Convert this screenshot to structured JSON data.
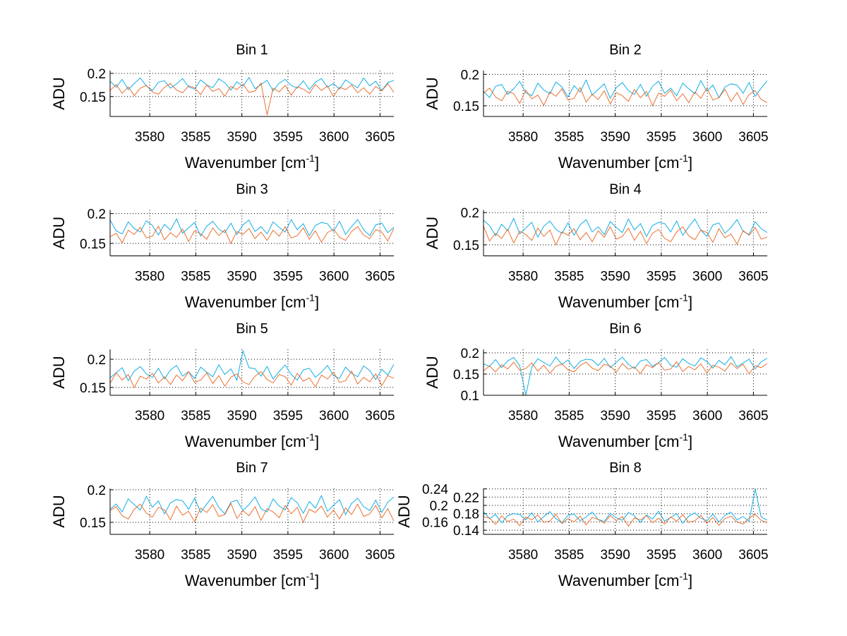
{
  "chart_data": [
    {
      "type": "line",
      "title": "Bin 1",
      "ylabel": "ADU",
      "xlim": [
        3575.7,
        3606.5
      ],
      "ylim": [
        0.107,
        0.206
      ],
      "yticks": [
        "0.15",
        "0.2"
      ],
      "ytick_values": [
        0.15,
        0.2
      ],
      "series": [
        {
          "name": "series-blue",
          "values": [
            183,
            170,
            187,
            165,
            178,
            190,
            173,
            163,
            181,
            184,
            168,
            177,
            189,
            171,
            166,
            186,
            175,
            169,
            188,
            180,
            164,
            182,
            172,
            191,
            167,
            176,
            185,
            162,
            179,
            187,
            174,
            168,
            184,
            165,
            181,
            189,
            170,
            178,
            166,
            186,
            177,
            169,
            190,
            173,
            183,
            163,
            180,
            185
          ]
        },
        {
          "name": "series-orange",
          "values": [
            163,
            176,
            157,
            171,
            152,
            168,
            174,
            160,
            155,
            170,
            178,
            164,
            158,
            173,
            169,
            154,
            175,
            161,
            167,
            151,
            172,
            165,
            177,
            159,
            162,
            179,
            110,
            168,
            160,
            174,
            153,
            171,
            166,
            157,
            176,
            163,
            173,
            150,
            170,
            165,
            175,
            158,
            169,
            155,
            172,
            162,
            178,
            159
          ]
        }
      ]
    },
    {
      "type": "line",
      "title": "Bin 2",
      "ylabel": "ADU",
      "xlim": [
        3575.7,
        3606.5
      ],
      "ylim": [
        0.133,
        0.206
      ],
      "yticks": [
        "0.15",
        "0.2"
      ],
      "ytick_values": [
        0.15,
        0.2
      ],
      "series": [
        {
          "name": "series-blue",
          "values": [
            173,
            163,
            181,
            184,
            168,
            177,
            189,
            171,
            166,
            186,
            175,
            169,
            188,
            180,
            164,
            182,
            172,
            191,
            167,
            176,
            185,
            162,
            179,
            187,
            174,
            168,
            184,
            165,
            181,
            189,
            170,
            178,
            166,
            186,
            177,
            169,
            190,
            173,
            183,
            163,
            180,
            185,
            183,
            170,
            187,
            165,
            178,
            190
          ]
        },
        {
          "name": "series-orange",
          "values": [
            170,
            178,
            164,
            158,
            173,
            169,
            154,
            175,
            161,
            167,
            151,
            172,
            165,
            177,
            159,
            162,
            179,
            156,
            168,
            160,
            174,
            153,
            171,
            166,
            157,
            176,
            163,
            173,
            150,
            170,
            165,
            175,
            158,
            169,
            155,
            172,
            162,
            178,
            159,
            163,
            176,
            157,
            171,
            152,
            168,
            174,
            160,
            155
          ]
        }
      ]
    },
    {
      "type": "line",
      "title": "Bin 3",
      "ylabel": "ADU",
      "xlim": [
        3575.7,
        3606.5
      ],
      "ylim": [
        0.129,
        0.206
      ],
      "yticks": [
        "0.15",
        "0.2"
      ],
      "ytick_values": [
        0.15,
        0.2
      ],
      "series": [
        {
          "name": "series-blue",
          "values": [
            189,
            171,
            166,
            186,
            175,
            169,
            188,
            180,
            164,
            182,
            172,
            191,
            167,
            176,
            185,
            162,
            179,
            187,
            174,
            168,
            184,
            165,
            181,
            189,
            170,
            178,
            166,
            186,
            177,
            169,
            190,
            173,
            183,
            163,
            180,
            185,
            183,
            170,
            187,
            165,
            178,
            190,
            173,
            163,
            181,
            184,
            168,
            177
          ]
        },
        {
          "name": "series-orange",
          "values": [
            161,
            167,
            151,
            172,
            165,
            177,
            159,
            162,
            179,
            156,
            168,
            160,
            174,
            153,
            171,
            166,
            157,
            176,
            163,
            173,
            150,
            170,
            165,
            175,
            158,
            169,
            155,
            172,
            162,
            178,
            159,
            163,
            176,
            157,
            171,
            152,
            168,
            174,
            160,
            155,
            170,
            178,
            164,
            158,
            173,
            169,
            154,
            175
          ]
        }
      ]
    },
    {
      "type": "line",
      "title": "Bin 4",
      "ylabel": "ADU",
      "xlim": [
        3575.7,
        3606.5
      ],
      "ylim": [
        0.133,
        0.204
      ],
      "yticks": [
        "0.15",
        "0.2"
      ],
      "ytick_values": [
        0.15,
        0.2
      ],
      "series": [
        {
          "name": "series-blue",
          "values": [
            188,
            180,
            164,
            182,
            172,
            191,
            167,
            176,
            185,
            162,
            179,
            187,
            174,
            168,
            184,
            165,
            181,
            189,
            170,
            178,
            166,
            186,
            177,
            169,
            190,
            173,
            183,
            163,
            180,
            185,
            183,
            170,
            187,
            165,
            178,
            190,
            173,
            163,
            181,
            184,
            168,
            177,
            189,
            171,
            166,
            186,
            175,
            169
          ]
        },
        {
          "name": "series-orange",
          "values": [
            179,
            156,
            168,
            160,
            174,
            153,
            171,
            166,
            157,
            176,
            163,
            173,
            150,
            170,
            165,
            175,
            158,
            169,
            155,
            172,
            162,
            178,
            159,
            163,
            176,
            157,
            171,
            152,
            168,
            174,
            160,
            155,
            170,
            178,
            164,
            158,
            173,
            169,
            154,
            175,
            161,
            167,
            151,
            172,
            165,
            177,
            159,
            162
          ]
        }
      ]
    },
    {
      "type": "line",
      "title": "Bin 5",
      "ylabel": "ADU",
      "xlim": [
        3575.7,
        3606.5
      ],
      "ylim": [
        0.136,
        0.2175
      ],
      "yticks": [
        "0.15",
        "0.2"
      ],
      "ytick_values": [
        0.15,
        0.2
      ],
      "series": [
        {
          "name": "series-blue",
          "values": [
            167,
            176,
            185,
            162,
            179,
            187,
            174,
            168,
            184,
            165,
            181,
            189,
            170,
            178,
            166,
            186,
            177,
            169,
            190,
            173,
            183,
            163,
            215,
            185,
            183,
            170,
            187,
            165,
            178,
            190,
            173,
            163,
            181,
            184,
            168,
            177,
            189,
            171,
            166,
            186,
            175,
            169,
            188,
            180,
            164,
            182,
            172,
            191
          ]
        },
        {
          "name": "series-orange",
          "values": [
            157,
            176,
            163,
            173,
            150,
            170,
            165,
            175,
            158,
            169,
            155,
            172,
            162,
            178,
            159,
            163,
            176,
            157,
            171,
            152,
            168,
            174,
            160,
            155,
            170,
            178,
            164,
            158,
            173,
            169,
            154,
            175,
            161,
            167,
            151,
            172,
            165,
            177,
            159,
            162,
            179,
            156,
            168,
            160,
            174,
            153,
            171,
            166
          ]
        }
      ]
    },
    {
      "type": "line",
      "title": "Bin 6",
      "ylabel": "ADU",
      "xlim": [
        3575.7,
        3606.5
      ],
      "ylim": [
        0.1,
        0.208
      ],
      "yticks": [
        "0.1",
        "0.15",
        "0.2"
      ],
      "ytick_values": [
        0.1,
        0.15,
        0.2
      ],
      "series": [
        {
          "name": "series-blue",
          "values": [
            174,
            168,
            184,
            165,
            181,
            189,
            170,
            100,
            166,
            186,
            177,
            169,
            190,
            173,
            183,
            163,
            180,
            185,
            183,
            170,
            187,
            165,
            178,
            190,
            173,
            163,
            181,
            184,
            168,
            177,
            189,
            171,
            166,
            186,
            175,
            169,
            188,
            180,
            164,
            182,
            172,
            191,
            167,
            176,
            185,
            162,
            179,
            187
          ]
        },
        {
          "name": "series-orange",
          "values": [
            158,
            169,
            155,
            172,
            162,
            178,
            159,
            163,
            176,
            157,
            171,
            152,
            168,
            174,
            160,
            155,
            170,
            178,
            164,
            158,
            173,
            169,
            154,
            175,
            161,
            167,
            151,
            172,
            165,
            177,
            159,
            162,
            179,
            156,
            168,
            160,
            174,
            153,
            171,
            166,
            157,
            176,
            163,
            173,
            150,
            170,
            165,
            175
          ]
        }
      ]
    },
    {
      "type": "line",
      "title": "Bin 7",
      "ylabel": "ADU",
      "xlim": [
        3575.7,
        3606.5
      ],
      "ylim": [
        0.1315,
        0.202
      ],
      "yticks": [
        "0.15",
        "0.2"
      ],
      "ytick_values": [
        0.15,
        0.2
      ],
      "series": [
        {
          "name": "series-blue",
          "values": [
            170,
            178,
            166,
            186,
            177,
            169,
            190,
            173,
            183,
            163,
            180,
            185,
            183,
            170,
            187,
            165,
            178,
            190,
            173,
            163,
            181,
            184,
            168,
            177,
            189,
            171,
            166,
            186,
            175,
            169,
            188,
            180,
            164,
            182,
            172,
            191,
            167,
            176,
            185,
            162,
            179,
            187,
            174,
            168,
            184,
            165,
            181,
            189
          ]
        },
        {
          "name": "series-orange",
          "values": [
            168,
            174,
            160,
            155,
            170,
            178,
            164,
            158,
            173,
            169,
            154,
            175,
            161,
            167,
            151,
            172,
            165,
            177,
            159,
            162,
            179,
            156,
            168,
            160,
            174,
            153,
            171,
            166,
            157,
            176,
            163,
            173,
            150,
            170,
            165,
            175,
            158,
            169,
            155,
            172,
            162,
            178,
            159,
            163,
            176,
            157,
            171,
            152
          ]
        }
      ]
    },
    {
      "type": "line",
      "title": "Bin 8",
      "ylabel": "ADU",
      "xlim": [
        3575.7,
        3606.5
      ],
      "ylim": [
        0.13,
        0.241
      ],
      "yticks": [
        "0.14",
        "0.16",
        "0.18",
        "0.2",
        "0.22",
        "0.24"
      ],
      "ytick_values": [
        0.14,
        0.16,
        0.18,
        0.2,
        0.22,
        0.24
      ],
      "series": [
        {
          "name": "series-blue",
          "values": [
            185,
            168,
            178,
            158,
            175,
            180,
            178,
            165,
            182,
            160,
            173,
            185,
            168,
            158,
            176,
            179,
            163,
            172,
            184,
            166,
            161,
            181,
            170,
            164,
            183,
            175,
            159,
            177,
            167,
            186,
            162,
            171,
            180,
            157,
            174,
            182,
            169,
            163,
            179,
            160,
            176,
            184,
            165,
            173,
            161,
            240,
            172,
            164
          ]
        },
        {
          "name": "series-orange",
          "values": [
            173,
            169,
            154,
            175,
            161,
            167,
            151,
            172,
            165,
            177,
            159,
            162,
            179,
            156,
            168,
            160,
            174,
            153,
            171,
            166,
            157,
            176,
            163,
            173,
            150,
            170,
            165,
            175,
            158,
            169,
            155,
            172,
            162,
            178,
            159,
            163,
            176,
            157,
            171,
            152,
            168,
            174,
            160,
            155,
            170,
            178,
            164,
            158
          ]
        }
      ]
    }
  ],
  "shared": {
    "value_scale": 0.001,
    "xticks": [
      "3580",
      "3585",
      "3590",
      "3595",
      "3600",
      "3605"
    ],
    "xtick_values": [
      3580,
      3585,
      3590,
      3595,
      3600,
      3605
    ],
    "xlabel_main": "Wavenumber [cm",
    "xlabel_sup": "-1",
    "xlabel_end": "]",
    "grid": true,
    "colors": {
      "series-blue": "#12aee6",
      "series-orange": "#e8621c"
    }
  }
}
